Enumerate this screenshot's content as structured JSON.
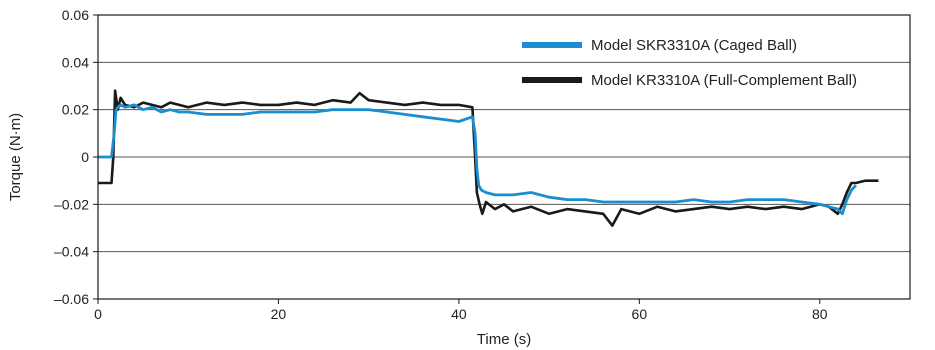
{
  "chart_data": {
    "type": "line",
    "xlabel": "Time (s)",
    "ylabel": "Torque (N·m)",
    "xlim": [
      0,
      90
    ],
    "ylim": [
      -0.06,
      0.06
    ],
    "x_ticks": [
      0,
      20,
      40,
      60,
      80
    ],
    "x_tick_labels": [
      "0",
      "20",
      "40",
      "60",
      "80"
    ],
    "y_ticks": [
      -0.06,
      -0.04,
      -0.02,
      0,
      0.02,
      0.04,
      0.06
    ],
    "y_tick_labels": [
      "–0.06",
      "–0.04",
      "–0.02",
      "0",
      "0.02",
      "0.04",
      "0.06"
    ],
    "grid": "horizontal",
    "legend_position": "top-right",
    "series": [
      {
        "name": "Model SKR3310A (Caged Ball)",
        "color": "#1a8ed0",
        "x": [
          0,
          1.5,
          1.8,
          2.0,
          2.2,
          2.5,
          3,
          4,
          5,
          6,
          7,
          8,
          9,
          10,
          12,
          14,
          16,
          18,
          20,
          22,
          24,
          26,
          28,
          30,
          32,
          34,
          36,
          38,
          40,
          41.5,
          41.8,
          42.0,
          42.2,
          42.5,
          43,
          44,
          46,
          48,
          50,
          52,
          54,
          56,
          58,
          60,
          62,
          64,
          66,
          68,
          70,
          72,
          74,
          76,
          78,
          80,
          81,
          82,
          82.5,
          83,
          83.5,
          84
        ],
        "y": [
          0.0,
          0.0,
          0.01,
          0.02,
          0.021,
          0.022,
          0.021,
          0.022,
          0.02,
          0.021,
          0.019,
          0.02,
          0.019,
          0.019,
          0.018,
          0.018,
          0.018,
          0.019,
          0.019,
          0.019,
          0.019,
          0.02,
          0.02,
          0.02,
          0.019,
          0.018,
          0.017,
          0.016,
          0.015,
          0.017,
          0.01,
          -0.005,
          -0.012,
          -0.014,
          -0.015,
          -0.016,
          -0.016,
          -0.015,
          -0.017,
          -0.018,
          -0.018,
          -0.019,
          -0.019,
          -0.019,
          -0.019,
          -0.019,
          -0.018,
          -0.019,
          -0.019,
          -0.018,
          -0.018,
          -0.018,
          -0.019,
          -0.02,
          -0.021,
          -0.022,
          -0.024,
          -0.018,
          -0.014,
          -0.012
        ]
      },
      {
        "name": "Model KR3310A (Full-Complement Ball)",
        "color": "#1a1a1a",
        "x": [
          0,
          1.5,
          1.7,
          1.9,
          2.2,
          2.5,
          3,
          4,
          5,
          6,
          7,
          8,
          9,
          10,
          12,
          14,
          16,
          18,
          20,
          22,
          24,
          26,
          28,
          29,
          30,
          32,
          34,
          36,
          38,
          40,
          41.5,
          41.8,
          42.0,
          42.3,
          42.6,
          43,
          44,
          45,
          46,
          48,
          50,
          52,
          54,
          56,
          57,
          58,
          60,
          62,
          64,
          66,
          68,
          70,
          72,
          74,
          76,
          78,
          80,
          81,
          82,
          82.5,
          83,
          83.5,
          84,
          85,
          86.5
        ],
        "y": [
          -0.011,
          -0.011,
          0.0,
          0.028,
          0.02,
          0.025,
          0.022,
          0.021,
          0.023,
          0.022,
          0.021,
          0.023,
          0.022,
          0.021,
          0.023,
          0.022,
          0.023,
          0.022,
          0.022,
          0.023,
          0.022,
          0.024,
          0.023,
          0.027,
          0.024,
          0.023,
          0.022,
          0.023,
          0.022,
          0.022,
          0.021,
          0.0,
          -0.015,
          -0.02,
          -0.024,
          -0.019,
          -0.022,
          -0.02,
          -0.023,
          -0.021,
          -0.024,
          -0.022,
          -0.023,
          -0.024,
          -0.029,
          -0.022,
          -0.024,
          -0.021,
          -0.023,
          -0.022,
          -0.021,
          -0.022,
          -0.021,
          -0.022,
          -0.021,
          -0.022,
          -0.02,
          -0.021,
          -0.024,
          -0.02,
          -0.015,
          -0.011,
          -0.011,
          -0.01,
          -0.01
        ]
      }
    ]
  }
}
